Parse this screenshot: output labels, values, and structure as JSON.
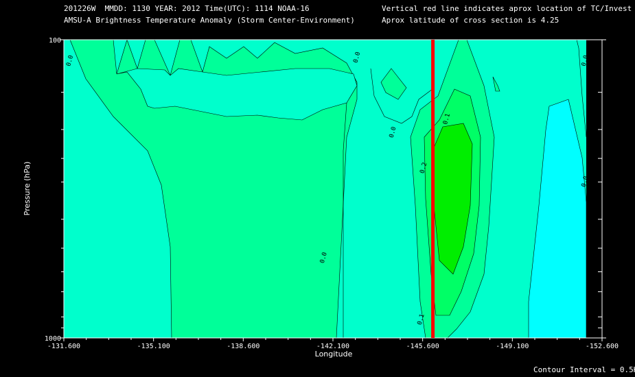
{
  "header": {
    "line1_left": "201226W  MMDD: 1130 YEAR: 2012 Time(UTC): 1114 NOAA-16",
    "line2_left": "AMSU-A Brightness Temperature Anomaly (Storm Center-Environment)",
    "line1_right": "Vertical red line indicates aprox location of TC/Invest",
    "line2_right": "Aprox latitude of cross section is 4.25"
  },
  "footer": {
    "contour_interval": "Contour Interval = 0.5K"
  },
  "colors": {
    "level_neg": "#00ffff",
    "level_0": "#00ffcc",
    "level_05": "#00ff99",
    "level_10": "#00ff66",
    "level_15": "#00ee00",
    "tc_line": "#ff0000"
  },
  "chart_data": {
    "type": "heatmap",
    "xlabel": "Longitude",
    "ylabel": "Pressure (hPa)",
    "xlim": [
      -131.6,
      -152.6
    ],
    "ylim": [
      1000,
      100
    ],
    "yscale": "log",
    "x_ticks": [
      -131.6,
      -135.1,
      -138.6,
      -142.1,
      -145.6,
      -149.1,
      -152.6
    ],
    "x_tick_labels": [
      "-131.600",
      "-135.100",
      "-138.600",
      "-142.100",
      "-145.600",
      "-149.100",
      "-152.600"
    ],
    "y_tick_labels": [
      "100",
      "1000"
    ],
    "y_ticks": [
      100,
      1000
    ],
    "y_minor_ticks": [
      150,
      200,
      250,
      300,
      400,
      500,
      600,
      700,
      850,
      925
    ],
    "tc_longitude": -146.0,
    "contour_interval": 0.5,
    "contour_labels": [
      {
        "text": "0.0",
        "lon": -131.9,
        "p": 118
      },
      {
        "text": "0.0",
        "lon": -143.1,
        "p": 115
      },
      {
        "text": "0.0",
        "lon": -144.5,
        "p": 205
      },
      {
        "text": "0.0",
        "lon": -141.8,
        "p": 540
      },
      {
        "text": "0.1",
        "lon": -146.6,
        "p": 185
      },
      {
        "text": "0.2",
        "lon": -145.7,
        "p": 270
      },
      {
        "text": "0.1",
        "lon": -145.6,
        "p": 870
      },
      {
        "text": "0.0",
        "lon": -152.0,
        "p": 118
      },
      {
        "text": "0.0",
        "lon": -152.0,
        "p": 300
      }
    ]
  }
}
